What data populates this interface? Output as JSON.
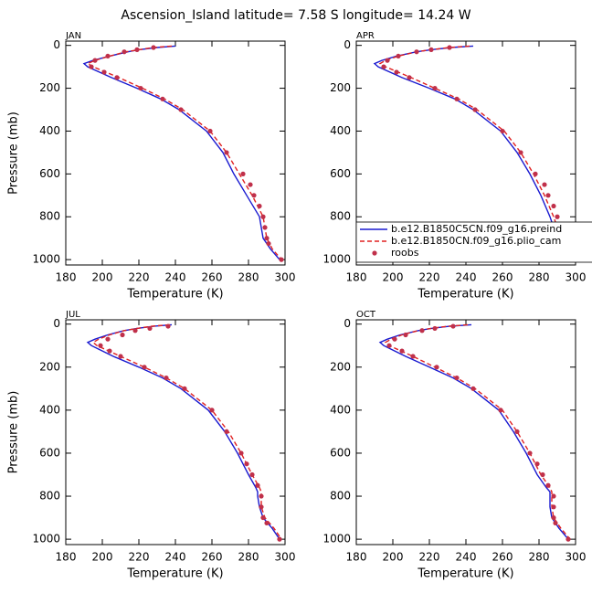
{
  "title": "Ascension_Island   latitude=  7.58 S longitude=  14.24 W",
  "chart_data": [
    {
      "type": "line",
      "title": "JAN",
      "xlabel": "Temperature (K)",
      "ylabel": "Pressure (mb)",
      "xlim": [
        180,
        300
      ],
      "ylim": [
        1025,
        -20
      ],
      "xticks": [
        180,
        200,
        220,
        240,
        260,
        280,
        300
      ],
      "yticks": [
        0,
        200,
        400,
        600,
        800,
        1000
      ],
      "series": [
        {
          "color": "#1a1ad0",
          "style": "solid",
          "x": [
            240,
            230,
            220,
            214,
            204,
            195,
            190,
            192,
            205,
            219,
            232,
            242,
            257,
            266,
            272,
            279,
            286,
            287,
            288,
            292,
            297
          ],
          "values": [
            3,
            10,
            20,
            30,
            50,
            70,
            85,
            100,
            150,
            200,
            250,
            300,
            400,
            500,
            600,
            700,
            800,
            850,
            900,
            950,
            1000
          ]
        },
        {
          "color": "#e02020",
          "style": "dashed",
          "x": [
            238,
            228,
            220,
            213,
            204,
            196,
            192,
            195,
            209,
            222,
            234,
            244,
            259,
            268,
            275,
            282,
            288,
            289,
            290,
            293,
            298
          ],
          "values": [
            3,
            10,
            20,
            30,
            50,
            70,
            85,
            100,
            150,
            200,
            250,
            300,
            400,
            500,
            600,
            700,
            800,
            850,
            900,
            950,
            1000
          ]
        },
        {
          "color": "#c0304a",
          "style": "dots",
          "x": [
            228,
            219,
            212,
            203,
            196,
            194,
            201,
            208,
            221,
            233,
            243,
            259,
            268,
            277,
            281,
            283,
            286,
            288,
            289,
            290,
            291,
            298
          ],
          "values": [
            10,
            20,
            30,
            50,
            70,
            100,
            125,
            150,
            200,
            250,
            300,
            400,
            500,
            600,
            650,
            700,
            750,
            800,
            850,
            900,
            925,
            1000
          ]
        }
      ]
    },
    {
      "type": "line",
      "title": "APR",
      "xlabel": "Temperature (K)",
      "legend": "lower right",
      "xlim": [
        180,
        300
      ],
      "ylim": [
        1025,
        -20
      ],
      "xticks": [
        180,
        200,
        220,
        240,
        260,
        280,
        300
      ],
      "yticks": [
        0,
        200,
        400,
        600,
        800,
        1000
      ],
      "series": [
        {
          "name": "b.e12.B1850C5CN.f09_g16.preind",
          "color": "#1a1ad0",
          "style": "solid",
          "x": [
            244,
            232,
            221,
            213,
            202,
            194,
            190,
            192,
            205,
            220,
            234,
            244,
            259,
            268,
            275,
            281,
            286,
            288,
            290,
            294,
            299
          ],
          "values": [
            3,
            10,
            20,
            30,
            50,
            70,
            85,
            100,
            150,
            200,
            250,
            300,
            400,
            500,
            600,
            700,
            800,
            850,
            900,
            950,
            1000
          ]
        },
        {
          "name": "b.e12.B1850CN.f09_g16.plio_cam",
          "color": "#e02020",
          "style": "dashed",
          "x": [
            242,
            231,
            221,
            213,
            203,
            196,
            193,
            196,
            210,
            223,
            236,
            246,
            261,
            270,
            277,
            283,
            288,
            290,
            292,
            295,
            299
          ],
          "values": [
            3,
            10,
            20,
            30,
            50,
            70,
            85,
            100,
            150,
            200,
            250,
            300,
            400,
            500,
            600,
            700,
            800,
            850,
            900,
            950,
            1000
          ]
        },
        {
          "name": "roobs",
          "color": "#c0304a",
          "style": "dots",
          "x": [
            231,
            221,
            213,
            203,
            197,
            195,
            202,
            209,
            223,
            235,
            245,
            260,
            270,
            278,
            283,
            285,
            288,
            290,
            292,
            294,
            298
          ],
          "values": [
            10,
            20,
            30,
            50,
            70,
            100,
            125,
            150,
            200,
            250,
            300,
            400,
            500,
            600,
            650,
            700,
            750,
            800,
            850,
            900,
            1000
          ]
        }
      ]
    },
    {
      "type": "line",
      "title": "JUL",
      "xlabel": "Temperature (K)",
      "ylabel": "Pressure (mb)",
      "xlim": [
        180,
        300
      ],
      "ylim": [
        1025,
        -20
      ],
      "xticks": [
        180,
        200,
        220,
        240,
        260,
        280,
        300
      ],
      "yticks": [
        0,
        200,
        400,
        600,
        800,
        1000
      ],
      "series": [
        {
          "color": "#1a1ad0",
          "style": "solid",
          "x": [
            238,
            228,
            219,
            212,
            203,
            196,
            192,
            194,
            206,
            220,
            233,
            243,
            258,
            267,
            274,
            280,
            284,
            285,
            285,
            286,
            288,
            293,
            297
          ],
          "values": [
            3,
            10,
            20,
            30,
            50,
            70,
            85,
            100,
            150,
            200,
            250,
            300,
            400,
            500,
            600,
            700,
            760,
            780,
            800,
            850,
            900,
            950,
            1000
          ]
        },
        {
          "color": "#e02020",
          "style": "dashed",
          "x": [
            237,
            227,
            219,
            212,
            204,
            198,
            195,
            197,
            210,
            223,
            235,
            245,
            260,
            269,
            276,
            282,
            286,
            287,
            287,
            287,
            289,
            294,
            298
          ],
          "values": [
            3,
            10,
            20,
            30,
            50,
            70,
            85,
            100,
            150,
            200,
            250,
            300,
            400,
            500,
            600,
            700,
            760,
            780,
            800,
            850,
            900,
            950,
            1000
          ]
        },
        {
          "color": "#c0304a",
          "style": "dots",
          "x": [
            236,
            226,
            218,
            211,
            203,
            199,
            204,
            210,
            223,
            235,
            245,
            260,
            268,
            276,
            279,
            282,
            285,
            287,
            287,
            288,
            290,
            297
          ],
          "values": [
            10,
            20,
            30,
            50,
            70,
            100,
            125,
            150,
            200,
            250,
            300,
            400,
            500,
            600,
            650,
            700,
            750,
            800,
            850,
            900,
            925,
            1000
          ]
        }
      ]
    },
    {
      "type": "line",
      "title": "OCT",
      "xlabel": "Temperature (K)",
      "xlim": [
        180,
        300
      ],
      "ylim": [
        1025,
        -20
      ],
      "xticks": [
        180,
        200,
        220,
        240,
        260,
        280,
        300
      ],
      "yticks": [
        0,
        200,
        400,
        600,
        800,
        1000
      ],
      "series": [
        {
          "color": "#1a1ad0",
          "style": "solid",
          "x": [
            243,
            231,
            221,
            214,
            204,
            197,
            193,
            195,
            207,
            220,
            233,
            243,
            258,
            266,
            273,
            279,
            284,
            286,
            286,
            286,
            287,
            291,
            296
          ],
          "values": [
            3,
            10,
            20,
            30,
            50,
            70,
            85,
            100,
            150,
            200,
            250,
            300,
            400,
            500,
            600,
            700,
            760,
            780,
            800,
            850,
            900,
            950,
            1000
          ]
        },
        {
          "color": "#e02020",
          "style": "dashed",
          "x": [
            241,
            230,
            221,
            214,
            205,
            199,
            196,
            198,
            211,
            223,
            235,
            245,
            260,
            268,
            275,
            281,
            286,
            287,
            287,
            287,
            288,
            292,
            297
          ],
          "values": [
            3,
            10,
            20,
            30,
            50,
            70,
            85,
            100,
            150,
            200,
            250,
            300,
            400,
            500,
            600,
            700,
            760,
            780,
            800,
            850,
            900,
            950,
            1000
          ]
        },
        {
          "color": "#c0304a",
          "style": "dots",
          "x": [
            233,
            223,
            216,
            207,
            201,
            198,
            205,
            211,
            224,
            235,
            244,
            259,
            268,
            275,
            279,
            282,
            285,
            288,
            288,
            288,
            289,
            296
          ],
          "values": [
            10,
            20,
            30,
            50,
            70,
            100,
            125,
            150,
            200,
            250,
            300,
            400,
            500,
            600,
            650,
            700,
            750,
            800,
            850,
            900,
            925,
            1000
          ]
        }
      ]
    }
  ]
}
